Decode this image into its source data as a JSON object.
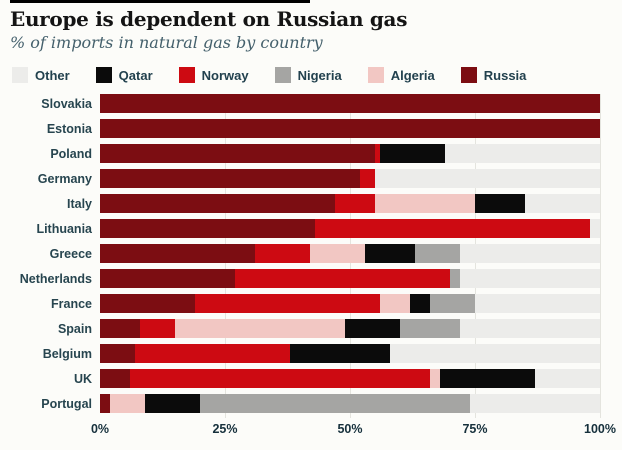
{
  "chart_data": {
    "type": "bar",
    "orientation": "horizontal",
    "stacked": true,
    "title": "Europe is dependent on Russian gas",
    "subtitle": "% of imports in natural gas by country",
    "xlabel": "",
    "ylabel": "",
    "xlim": [
      0,
      100
    ],
    "x_ticks": [
      "0%",
      "25%",
      "50%",
      "75%",
      "100%"
    ],
    "x_tick_values": [
      0,
      25,
      50,
      75,
      100
    ],
    "grid": "faint vertical lines at quarter marks",
    "legend_position": "top",
    "legend": [
      {
        "label": "Other",
        "color": "#ececea"
      },
      {
        "label": "Qatar",
        "color": "#0b0b0b"
      },
      {
        "label": "Norway",
        "color": "#cd0a12"
      },
      {
        "label": "Nigeria",
        "color": "#a5a5a3"
      },
      {
        "label": "Algeria",
        "color": "#f2c7c3"
      },
      {
        "label": "Russia",
        "color": "#7c0d12"
      }
    ],
    "stack_order": [
      "Russia",
      "Norway",
      "Algeria",
      "Qatar",
      "Nigeria",
      "Other"
    ],
    "series_colors": {
      "Russia": "#7c0d12",
      "Norway": "#cd0a12",
      "Algeria": "#f2c7c3",
      "Qatar": "#0b0b0b",
      "Nigeria": "#a5a5a3",
      "Other": "#ececea"
    },
    "rows": [
      {
        "country": "Slovakia",
        "values": {
          "Russia": 100,
          "Norway": 0,
          "Algeria": 0,
          "Qatar": 0,
          "Nigeria": 0,
          "Other": 0
        }
      },
      {
        "country": "Estonia",
        "values": {
          "Russia": 100,
          "Norway": 0,
          "Algeria": 0,
          "Qatar": 0,
          "Nigeria": 0,
          "Other": 0
        }
      },
      {
        "country": "Poland",
        "values": {
          "Russia": 55,
          "Norway": 1,
          "Algeria": 0,
          "Qatar": 13,
          "Nigeria": 0,
          "Other": 31
        }
      },
      {
        "country": "Germany",
        "values": {
          "Russia": 52,
          "Norway": 3,
          "Algeria": 0,
          "Qatar": 0,
          "Nigeria": 0,
          "Other": 45
        }
      },
      {
        "country": "Italy",
        "values": {
          "Russia": 47,
          "Norway": 8,
          "Algeria": 20,
          "Qatar": 10,
          "Nigeria": 0,
          "Other": 15
        }
      },
      {
        "country": "Lithuania",
        "values": {
          "Russia": 43,
          "Norway": 55,
          "Algeria": 0,
          "Qatar": 0,
          "Nigeria": 0,
          "Other": 2
        }
      },
      {
        "country": "Greece",
        "values": {
          "Russia": 31,
          "Norway": 11,
          "Algeria": 11,
          "Qatar": 10,
          "Nigeria": 9,
          "Other": 28
        }
      },
      {
        "country": "Netherlands",
        "values": {
          "Russia": 27,
          "Norway": 43,
          "Algeria": 0,
          "Qatar": 0,
          "Nigeria": 2,
          "Other": 28
        }
      },
      {
        "country": "France",
        "values": {
          "Russia": 19,
          "Norway": 37,
          "Algeria": 6,
          "Qatar": 4,
          "Nigeria": 9,
          "Other": 25
        }
      },
      {
        "country": "Spain",
        "values": {
          "Russia": 8,
          "Norway": 7,
          "Algeria": 34,
          "Qatar": 11,
          "Nigeria": 12,
          "Other": 28
        }
      },
      {
        "country": "Belgium",
        "values": {
          "Russia": 7,
          "Norway": 31,
          "Algeria": 0,
          "Qatar": 20,
          "Nigeria": 0,
          "Other": 42
        }
      },
      {
        "country": "UK",
        "values": {
          "Russia": 6,
          "Norway": 60,
          "Algeria": 2,
          "Qatar": 19,
          "Nigeria": 0,
          "Other": 13
        }
      },
      {
        "country": "Portugal",
        "values": {
          "Russia": 2,
          "Norway": 0,
          "Algeria": 7,
          "Qatar": 11,
          "Nigeria": 54,
          "Other": 26
        }
      }
    ]
  }
}
